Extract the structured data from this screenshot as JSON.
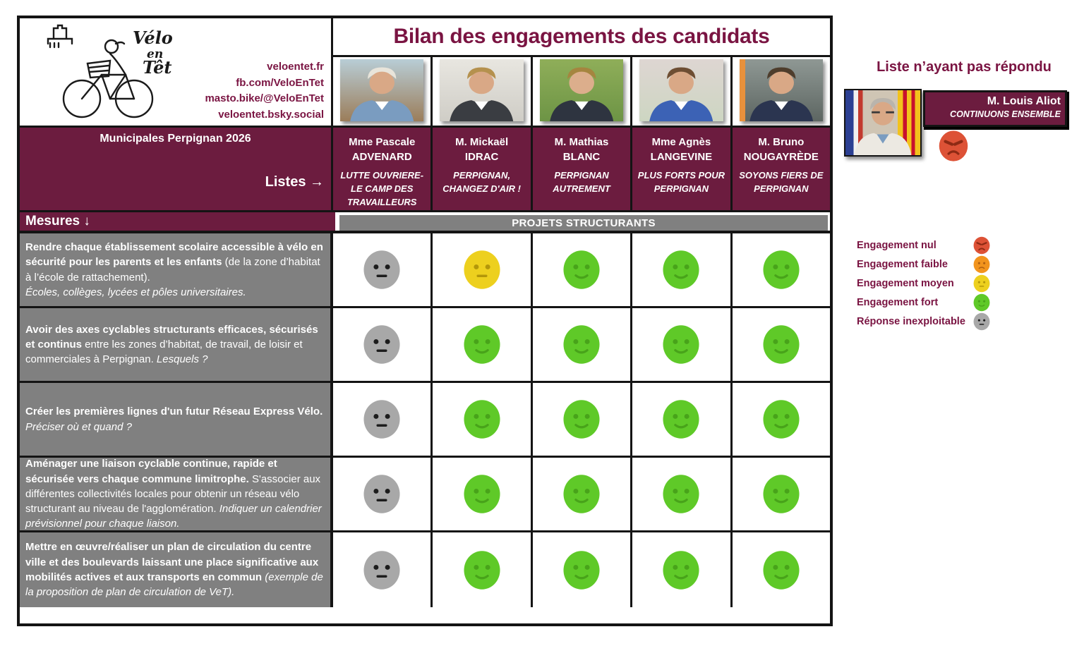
{
  "colors": {
    "maroon": "#6c1c3f",
    "maroon_text": "#7a1442",
    "band_gray": "#808080",
    "cell_gray": "#808080",
    "border": "#141414"
  },
  "header": {
    "logo_words": [
      "Vélo",
      "en",
      "Têt"
    ],
    "links": [
      "veloentet.fr",
      "fb.com/VeloEnTet",
      "masto.bike/@VeloEnTet",
      "veloentet.bsky.social"
    ],
    "title": "Bilan des engagements des candidats",
    "municipales": "Municipales Perpignan 2026",
    "listes_label": "Listes →",
    "mesures_label": "Mesures ↓",
    "section_label": "PROJETS STRUCTURANTS"
  },
  "candidates": [
    {
      "name_top": "Mme Pascale",
      "name_bottom": "ADVENARD",
      "list": "LUTTE OUVRIERE- LE CAMP DES TRAVAILLEURS",
      "photo": {
        "bg_top": "#b8cdd6",
        "bg_bottom": "#9b7d5a",
        "hair": "#e8e4da",
        "skin": "#d9a886",
        "suit": "#7a9cc0"
      }
    },
    {
      "name_top": "M. Mickaël",
      "name_bottom": "IDRAC",
      "list": "PERPIGNAN, CHANGEZ D'AIR !",
      "photo": {
        "bg_top": "#e8e6e0",
        "bg_bottom": "#cfcdc6",
        "hair": "#b5914e",
        "skin": "#d9a886",
        "suit": "#3a3d42"
      }
    },
    {
      "name_top": "M. Mathias",
      "name_bottom": "BLANC",
      "list": "PERPIGNAN AUTREMENT",
      "photo": {
        "bg_top": "#8fae59",
        "bg_bottom": "#6d9445",
        "hair": "#a5853f",
        "skin": "#dcae8c",
        "suit": "#2e3440"
      }
    },
    {
      "name_top": "Mme Agnès",
      "name_bottom": "LANGEVINE",
      "list": "PLUS FORTS POUR PERPIGNAN",
      "photo": {
        "bg_top": "#ded6d2",
        "bg_bottom": "#cdd6c2",
        "hair": "#6e4e33",
        "skin": "#d9a886",
        "suit": "#3c62b5"
      }
    },
    {
      "name_top": "M. Bruno",
      "name_bottom": "NOUGAYRÈDE",
      "list": "SOYONS FIERS DE PERPIGNAN",
      "photo": {
        "bg_top": "#8f9894",
        "bg_bottom": "#5d6662",
        "hair": "#4e3d2c",
        "skin": "#d9a886",
        "suit": "#2b3550",
        "accent": "#e8913c"
      }
    }
  ],
  "measures": [
    {
      "segments": [
        {
          "style": "bold",
          "text": "Rendre chaque établissement scolaire accessible à vélo en sécurité pour les parents et les enfants "
        },
        {
          "style": "regular",
          "text": "(de la zone d’habitat à l’école de rattachement)."
        },
        {
          "style": "italic",
          "text": "Écoles, collèges, lycées et pôles universitaires.",
          "break_before": true
        }
      ],
      "ratings": [
        "inexploitable",
        "moyen",
        "fort",
        "fort",
        "fort"
      ]
    },
    {
      "segments": [
        {
          "style": "bold",
          "text": "Avoir des axes cyclables structurants efficaces, sécurisés et continus "
        },
        {
          "style": "regular",
          "text": "entre les zones d’habitat, de travail, de loisir et commerciales à Perpignan. "
        },
        {
          "style": "italic",
          "text": "Lesquels ?"
        }
      ],
      "ratings": [
        "inexploitable",
        "fort",
        "fort",
        "fort",
        "fort"
      ]
    },
    {
      "segments": [
        {
          "style": "bold",
          "text": "Créer les premières lignes d'un futur Réseau Express Vélo."
        },
        {
          "style": "italic",
          "text": "Préciser où et quand ?",
          "break_before": true
        }
      ],
      "ratings": [
        "inexploitable",
        "fort",
        "fort",
        "fort",
        "fort"
      ]
    },
    {
      "segments": [
        {
          "style": "bold",
          "text": "Aménager une liaison cyclable continue, rapide et sécurisée vers chaque commune limitrophe. "
        },
        {
          "style": "regular",
          "text": "S'associer aux différentes collectivités locales pour obtenir un réseau vélo structurant au niveau de l'agglomération. "
        },
        {
          "style": "italic",
          "text": "Indiquer un calendrier prévisionnel pour chaque liaison."
        }
      ],
      "ratings": [
        "inexploitable",
        "fort",
        "fort",
        "fort",
        "fort"
      ]
    },
    {
      "segments": [
        {
          "style": "bold",
          "text": "Mettre en œuvre/réaliser un plan de circulation du centre ville et des boulevards laissant une place significative aux mobilités actives et aux transports en commun "
        },
        {
          "style": "italic",
          "text": "(exemple de la proposition de plan de circulation de VeT)."
        }
      ],
      "ratings": [
        "inexploitable",
        "fort",
        "fort",
        "fort",
        "fort"
      ]
    }
  ],
  "legend": {
    "items": [
      {
        "label": "Engagement nul",
        "type": "nul"
      },
      {
        "label": "Engagement faible",
        "type": "faible"
      },
      {
        "label": "Engagement moyen",
        "type": "moyen"
      },
      {
        "label": "Engagement fort",
        "type": "fort"
      },
      {
        "label": "Réponse inexploitable",
        "type": "inexploitable"
      }
    ],
    "colors": {
      "nul": "#dd5236",
      "faible": "#f2941d",
      "moyen": "#edd01e",
      "fort": "#5fc928",
      "inexploitable": "#a8a8a8"
    },
    "feature_colors": {
      "nul": "#8e2a14",
      "faible": "#b05f10",
      "moyen": "#b3970a",
      "fort": "#48a31a",
      "inexploitable": "#1c1c1c"
    }
  },
  "no_response": {
    "heading": "Liste n’ayant pas répondu",
    "name": "M. Louis Aliot",
    "list": "CONTINUONS ENSEMBLE",
    "rating": "nul"
  }
}
